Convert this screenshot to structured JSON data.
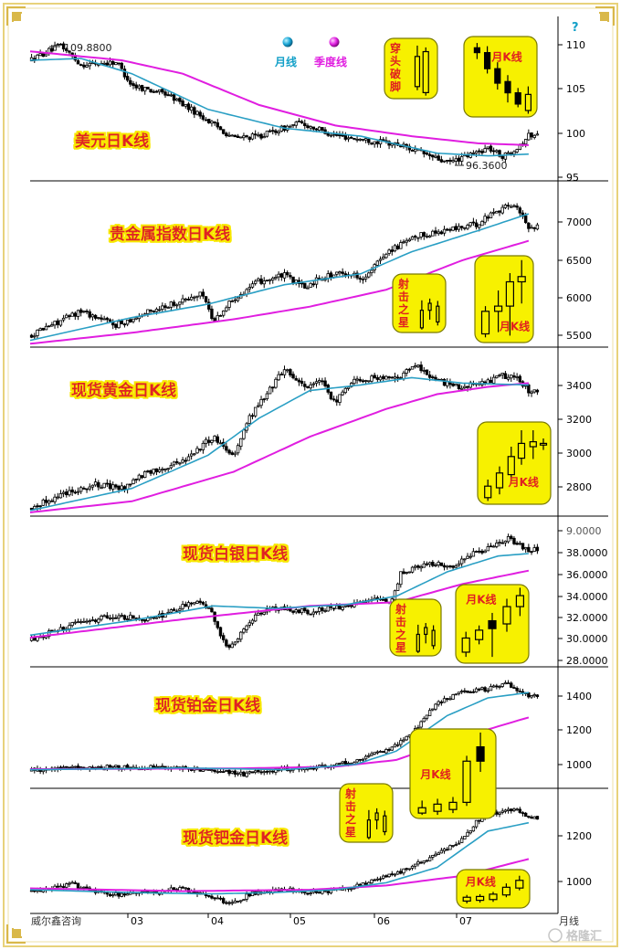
{
  "legend": {
    "monthly_ma": "月线",
    "quarterly_ma": "季度线"
  },
  "footer": {
    "source": "威尔鑫咨询",
    "period": "月线",
    "watermark": "格隆汇"
  },
  "colors": {
    "candle": "#000000",
    "ma_month": "#2a9fc4",
    "ma_quarter": "#e01ee0",
    "callout_bg": "#f7f100",
    "title": "#e02020",
    "title_glow": "#f8e800"
  },
  "chart_data": [
    {
      "type": "candlestick",
      "title": "美元日K线",
      "y_ticks": [
        "110",
        "105",
        "100",
        "95"
      ],
      "y_range": [
        94.5,
        112.5
      ],
      "x_range": [
        0,
        100
      ],
      "x_ticks": [],
      "annotations": [
        {
          "text": "109.8800",
          "x": 8,
          "y": 109.88
        },
        {
          "text": "96.3600",
          "x": 83,
          "y": 96.36
        }
      ],
      "anchors": [
        [
          0,
          108
        ],
        [
          6,
          109.7
        ],
        [
          10,
          107.5
        ],
        [
          17,
          107.8
        ],
        [
          20,
          105.2
        ],
        [
          27,
          104.2
        ],
        [
          33,
          102
        ],
        [
          40,
          99.3
        ],
        [
          45,
          99.5
        ],
        [
          53,
          101
        ],
        [
          60,
          99.6
        ],
        [
          67,
          99
        ],
        [
          73,
          98.5
        ],
        [
          78,
          97.4
        ],
        [
          82,
          96.5
        ],
        [
          86,
          97.3
        ],
        [
          90,
          98.2
        ],
        [
          93,
          97.2
        ],
        [
          96,
          98.4
        ],
        [
          98,
          99.6
        ]
      ],
      "ma_month": [
        [
          0,
          108
        ],
        [
          10,
          108.2
        ],
        [
          20,
          106.5
        ],
        [
          35,
          102.5
        ],
        [
          50,
          100.4
        ],
        [
          65,
          99.5
        ],
        [
          80,
          97.6
        ],
        [
          90,
          97.3
        ],
        [
          98,
          97.5
        ]
      ],
      "ma_quarter": [
        [
          0,
          109
        ],
        [
          18,
          108
        ],
        [
          30,
          106.5
        ],
        [
          45,
          103
        ],
        [
          60,
          100.7
        ],
        [
          75,
          99.5
        ],
        [
          88,
          98.7
        ],
        [
          98,
          98.5
        ]
      ],
      "callouts": [
        {
          "label": "穿头破脚",
          "kind": "engulf"
        },
        {
          "label": "月K线",
          "kind": "month_usd"
        }
      ]
    },
    {
      "type": "candlestick",
      "title": "贵金属指数日K线",
      "y_ticks": [
        "7000",
        "6500",
        "6000",
        "5500"
      ],
      "y_range": [
        5420,
        7380
      ],
      "x_range": [
        0,
        100
      ],
      "x_ticks": [],
      "annotations": [],
      "anchors": [
        [
          0,
          5560
        ],
        [
          10,
          5850
        ],
        [
          17,
          5680
        ],
        [
          25,
          5880
        ],
        [
          34,
          6050
        ],
        [
          36,
          5720
        ],
        [
          40,
          6000
        ],
        [
          45,
          6200
        ],
        [
          50,
          6270
        ],
        [
          54,
          6120
        ],
        [
          57,
          6250
        ],
        [
          62,
          6300
        ],
        [
          66,
          6240
        ],
        [
          70,
          6550
        ],
        [
          77,
          6750
        ],
        [
          83,
          6820
        ],
        [
          88,
          6880
        ],
        [
          91,
          7020
        ],
        [
          95,
          7120
        ],
        [
          98,
          6850
        ]
      ],
      "ma_month": [
        [
          0,
          5500
        ],
        [
          20,
          5770
        ],
        [
          35,
          5930
        ],
        [
          50,
          6160
        ],
        [
          65,
          6290
        ],
        [
          75,
          6550
        ],
        [
          88,
          6800
        ],
        [
          98,
          7000
        ]
      ],
      "ma_quarter": [
        [
          0,
          5460
        ],
        [
          20,
          5590
        ],
        [
          40,
          5750
        ],
        [
          55,
          5900
        ],
        [
          70,
          6100
        ],
        [
          85,
          6450
        ],
        [
          98,
          6680
        ]
      ],
      "callouts": [
        {
          "label": "射击之星",
          "kind": "star"
        },
        {
          "label": "月K线",
          "kind": "month_up"
        }
      ]
    },
    {
      "type": "candlestick",
      "title": "现货黄金日K线",
      "y_ticks": [
        "3400",
        "3200",
        "3000",
        "2800"
      ],
      "y_range": [
        2620,
        3530
      ],
      "x_range": [
        0,
        100
      ],
      "x_ticks": [],
      "annotations": [],
      "anchors": [
        [
          0,
          2660
        ],
        [
          7,
          2750
        ],
        [
          13,
          2790
        ],
        [
          18,
          2770
        ],
        [
          22,
          2840
        ],
        [
          30,
          2920
        ],
        [
          36,
          3050
        ],
        [
          40,
          2950
        ],
        [
          43,
          3150
        ],
        [
          47,
          3300
        ],
        [
          50,
          3420
        ],
        [
          54,
          3320
        ],
        [
          57,
          3350
        ],
        [
          60,
          3230
        ],
        [
          63,
          3350
        ],
        [
          67,
          3370
        ],
        [
          72,
          3360
        ],
        [
          76,
          3440
        ],
        [
          80,
          3350
        ],
        [
          85,
          3320
        ],
        [
          89,
          3340
        ],
        [
          93,
          3380
        ],
        [
          96,
          3360
        ],
        [
          98,
          3300
        ]
      ],
      "ma_month": [
        [
          0,
          2650
        ],
        [
          20,
          2770
        ],
        [
          35,
          2950
        ],
        [
          45,
          3150
        ],
        [
          55,
          3300
        ],
        [
          65,
          3330
        ],
        [
          75,
          3370
        ],
        [
          85,
          3340
        ],
        [
          98,
          3330
        ]
      ],
      "ma_quarter": [
        [
          0,
          2640
        ],
        [
          20,
          2700
        ],
        [
          40,
          2860
        ],
        [
          55,
          3050
        ],
        [
          70,
          3200
        ],
        [
          80,
          3280
        ],
        [
          90,
          3320
        ],
        [
          98,
          3340
        ]
      ],
      "callouts": [
        {
          "label": "月K线",
          "kind": "month_gold"
        }
      ]
    },
    {
      "type": "candlestick",
      "title": "现货白银日K线",
      "y_ticks": [
        "9.0000",
        "38.0000",
        "36.0000",
        "34.0000",
        "32.0000",
        "30.0000",
        "28.0000"
      ],
      "y_range": [
        28.0,
        40.3
      ],
      "x_range": [
        0,
        100
      ],
      "x_ticks": [],
      "annotations": [],
      "anchors": [
        [
          0,
          30.2
        ],
        [
          8,
          31.4
        ],
        [
          16,
          32.2
        ],
        [
          24,
          31.9
        ],
        [
          32,
          33.3
        ],
        [
          35,
          33.0
        ],
        [
          39,
          29.3
        ],
        [
          43,
          31.7
        ],
        [
          47,
          32.8
        ],
        [
          55,
          32.5
        ],
        [
          62,
          33.0
        ],
        [
          68,
          33.5
        ],
        [
          71,
          33.2
        ],
        [
          73,
          35.8
        ],
        [
          79,
          36.5
        ],
        [
          83,
          36.3
        ],
        [
          87,
          37.3
        ],
        [
          91,
          37.8
        ],
        [
          94,
          38.6
        ],
        [
          98,
          37.6
        ]
      ],
      "ma_month": [
        [
          0,
          30.6
        ],
        [
          20,
          31.8
        ],
        [
          36,
          33.0
        ],
        [
          48,
          32.8
        ],
        [
          62,
          33.1
        ],
        [
          72,
          33.8
        ],
        [
          82,
          35.8
        ],
        [
          92,
          37.1
        ],
        [
          98,
          37.3
        ]
      ],
      "ma_quarter": [
        [
          0,
          30.4
        ],
        [
          30,
          31.9
        ],
        [
          55,
          33.0
        ],
        [
          72,
          33.3
        ],
        [
          85,
          34.8
        ],
        [
          98,
          35.9
        ]
      ],
      "callouts": [
        {
          "label": "射击之星",
          "kind": "star"
        },
        {
          "label": "月K线",
          "kind": "month_silver"
        }
      ]
    },
    {
      "type": "candlestick",
      "title": "现货铂金日K线",
      "y_ticks": [
        "1400",
        "1200",
        "1000"
      ],
      "y_range": [
        850,
        1530
      ],
      "x_range": [
        0,
        100
      ],
      "x_ticks": [],
      "annotations": [],
      "anchors": [
        [
          0,
          950
        ],
        [
          12,
          970
        ],
        [
          25,
          970
        ],
        [
          36,
          945
        ],
        [
          42,
          930
        ],
        [
          50,
          960
        ],
        [
          58,
          975
        ],
        [
          65,
          1010
        ],
        [
          70,
          1070
        ],
        [
          75,
          1150
        ],
        [
          80,
          1330
        ],
        [
          85,
          1400
        ],
        [
          90,
          1410
        ],
        [
          94,
          1440
        ],
        [
          98,
          1370
        ]
      ],
      "ma_month": [
        [
          0,
          955
        ],
        [
          30,
          965
        ],
        [
          50,
          955
        ],
        [
          64,
          985
        ],
        [
          72,
          1060
        ],
        [
          82,
          1260
        ],
        [
          90,
          1360
        ],
        [
          98,
          1390
        ]
      ],
      "ma_quarter": [
        [
          0,
          958
        ],
        [
          40,
          962
        ],
        [
          60,
          972
        ],
        [
          72,
          1010
        ],
        [
          85,
          1140
        ],
        [
          98,
          1250
        ]
      ],
      "callouts": [
        {
          "label": "月K线",
          "kind": "month_plat"
        }
      ]
    },
    {
      "type": "candlestick",
      "title": "现货钯金日K线",
      "y_ticks": [
        "1200",
        "1000"
      ],
      "y_range": [
        885,
        1330
      ],
      "x_range": [
        0,
        100
      ],
      "x_ticks": [
        "03",
        "04",
        "05",
        "06",
        "07"
      ],
      "annotations": [],
      "anchors": [
        [
          0,
          965
        ],
        [
          8,
          990
        ],
        [
          16,
          950
        ],
        [
          24,
          960
        ],
        [
          30,
          975
        ],
        [
          36,
          935
        ],
        [
          40,
          925
        ],
        [
          44,
          960
        ],
        [
          50,
          970
        ],
        [
          57,
          960
        ],
        [
          62,
          975
        ],
        [
          67,
          1000
        ],
        [
          72,
          1030
        ],
        [
          76,
          1060
        ],
        [
          80,
          1100
        ],
        [
          85,
          1150
        ],
        [
          88,
          1220
        ],
        [
          92,
          1250
        ],
        [
          95,
          1260
        ],
        [
          98,
          1230
        ]
      ],
      "ma_month": [
        [
          0,
          970
        ],
        [
          20,
          960
        ],
        [
          35,
          955
        ],
        [
          48,
          960
        ],
        [
          60,
          970
        ],
        [
          70,
          995
        ],
        [
          80,
          1050
        ],
        [
          90,
          1180
        ],
        [
          98,
          1210
        ]
      ],
      "ma_quarter": [
        [
          0,
          975
        ],
        [
          30,
          965
        ],
        [
          55,
          970
        ],
        [
          70,
          985
        ],
        [
          85,
          1020
        ],
        [
          98,
          1080
        ]
      ],
      "callouts": [
        {
          "label": "射击之星",
          "kind": "star"
        },
        {
          "label": "月K线",
          "kind": "month_pall"
        }
      ]
    }
  ]
}
